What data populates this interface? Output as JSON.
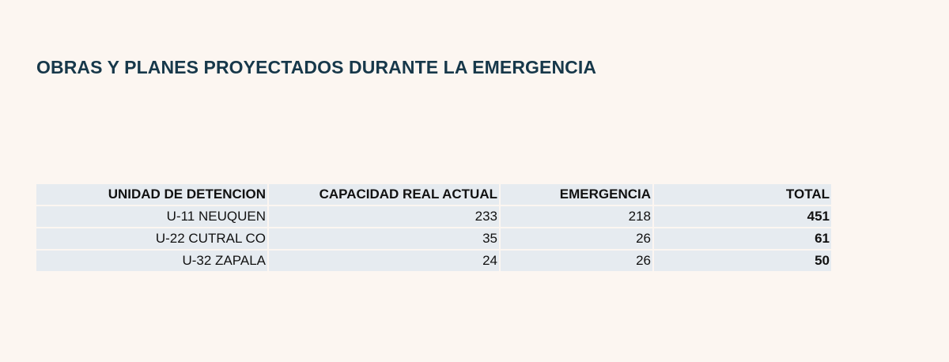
{
  "title": "OBRAS Y PLANES PROYECTADOS DURANTE LA EMERGENCIA",
  "table": {
    "headers": {
      "unidad": "UNIDAD DE DETENCION",
      "capacidad": "CAPACIDAD REAL ACTUAL",
      "emergencia": "EMERGENCIA",
      "total": "TOTAL"
    },
    "rows": [
      {
        "unidad": "U-11 NEUQUEN",
        "capacidad": "233",
        "emergencia": "218",
        "total": "451"
      },
      {
        "unidad": "U-22 CUTRAL CO",
        "capacidad": "35",
        "emergencia": "26",
        "total": "61"
      },
      {
        "unidad": "U-32 ZAPALA",
        "capacidad": "24",
        "emergencia": "26",
        "total": "50"
      }
    ]
  },
  "colors": {
    "background": "#fcf6f1",
    "title": "#17384a",
    "cell_fill": "#e6ebf0"
  }
}
